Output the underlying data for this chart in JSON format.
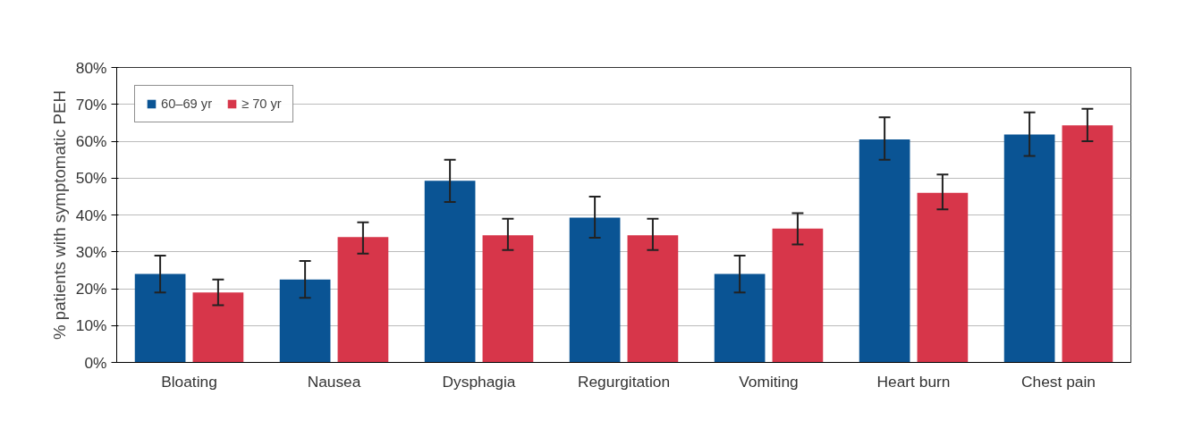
{
  "chart_data": {
    "type": "bar",
    "ylabel": "% patients with symptomatic PEH",
    "categories": [
      "Bloating",
      "Nausea",
      "Dysphagia",
      "Regurgitation",
      "Vomiting",
      "Heart burn",
      "Chest pain"
    ],
    "series": [
      {
        "name": "60–69 yr",
        "color": "#0a5494",
        "values": [
          24,
          22.5,
          49.3,
          39.3,
          24,
          60.5,
          61.8
        ],
        "errors": [
          [
            19,
            29
          ],
          [
            17.5,
            27.5
          ],
          [
            43.5,
            55
          ],
          [
            33.8,
            45
          ],
          [
            19,
            29
          ],
          [
            55,
            66.5
          ],
          [
            56,
            67.8
          ]
        ]
      },
      {
        "name": "≥ 70 yr",
        "color": "#d7364a",
        "values": [
          19,
          34,
          34.5,
          34.5,
          36.3,
          46,
          64.3
        ],
        "errors": [
          [
            15.5,
            22.5
          ],
          [
            29.5,
            38
          ],
          [
            30.5,
            39
          ],
          [
            30.5,
            39
          ],
          [
            32,
            40.5
          ],
          [
            41.5,
            51
          ],
          [
            60,
            68.8
          ]
        ]
      }
    ],
    "ylim": [
      0,
      80
    ],
    "yticks": [
      {
        "value": 0,
        "label": "0%"
      },
      {
        "value": 10,
        "label": "10%"
      },
      {
        "value": 20,
        "label": "20%"
      },
      {
        "value": 30,
        "label": "30%"
      },
      {
        "value": 40,
        "label": "40%"
      },
      {
        "value": 50,
        "label": "50%"
      },
      {
        "value": 60,
        "label": "60%"
      },
      {
        "value": 70,
        "label": "70%"
      },
      {
        "value": 80,
        "label": "80%"
      }
    ],
    "grid": "y",
    "legend": "top left"
  }
}
